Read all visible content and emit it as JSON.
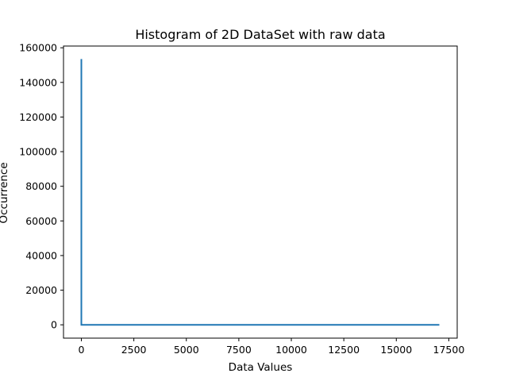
{
  "chart_data": {
    "type": "line",
    "title": "Histogram of 2D DataSet with raw data",
    "xlabel": "Data Values",
    "ylabel": "Occurrence",
    "xlim": [
      -850,
      17900
    ],
    "ylim": [
      -7700,
      161000
    ],
    "x_ticks": [
      0,
      2500,
      5000,
      7500,
      10000,
      12500,
      15000,
      17500
    ],
    "y_ticks": [
      0,
      20000,
      40000,
      60000,
      80000,
      100000,
      120000,
      140000,
      160000
    ],
    "grid": false,
    "legend": "none",
    "series": [
      {
        "color": "#1f77b4",
        "x": [
          0,
          0,
          0,
          17050
        ],
        "y": [
          153500,
          153500,
          0,
          0
        ]
      }
    ]
  }
}
